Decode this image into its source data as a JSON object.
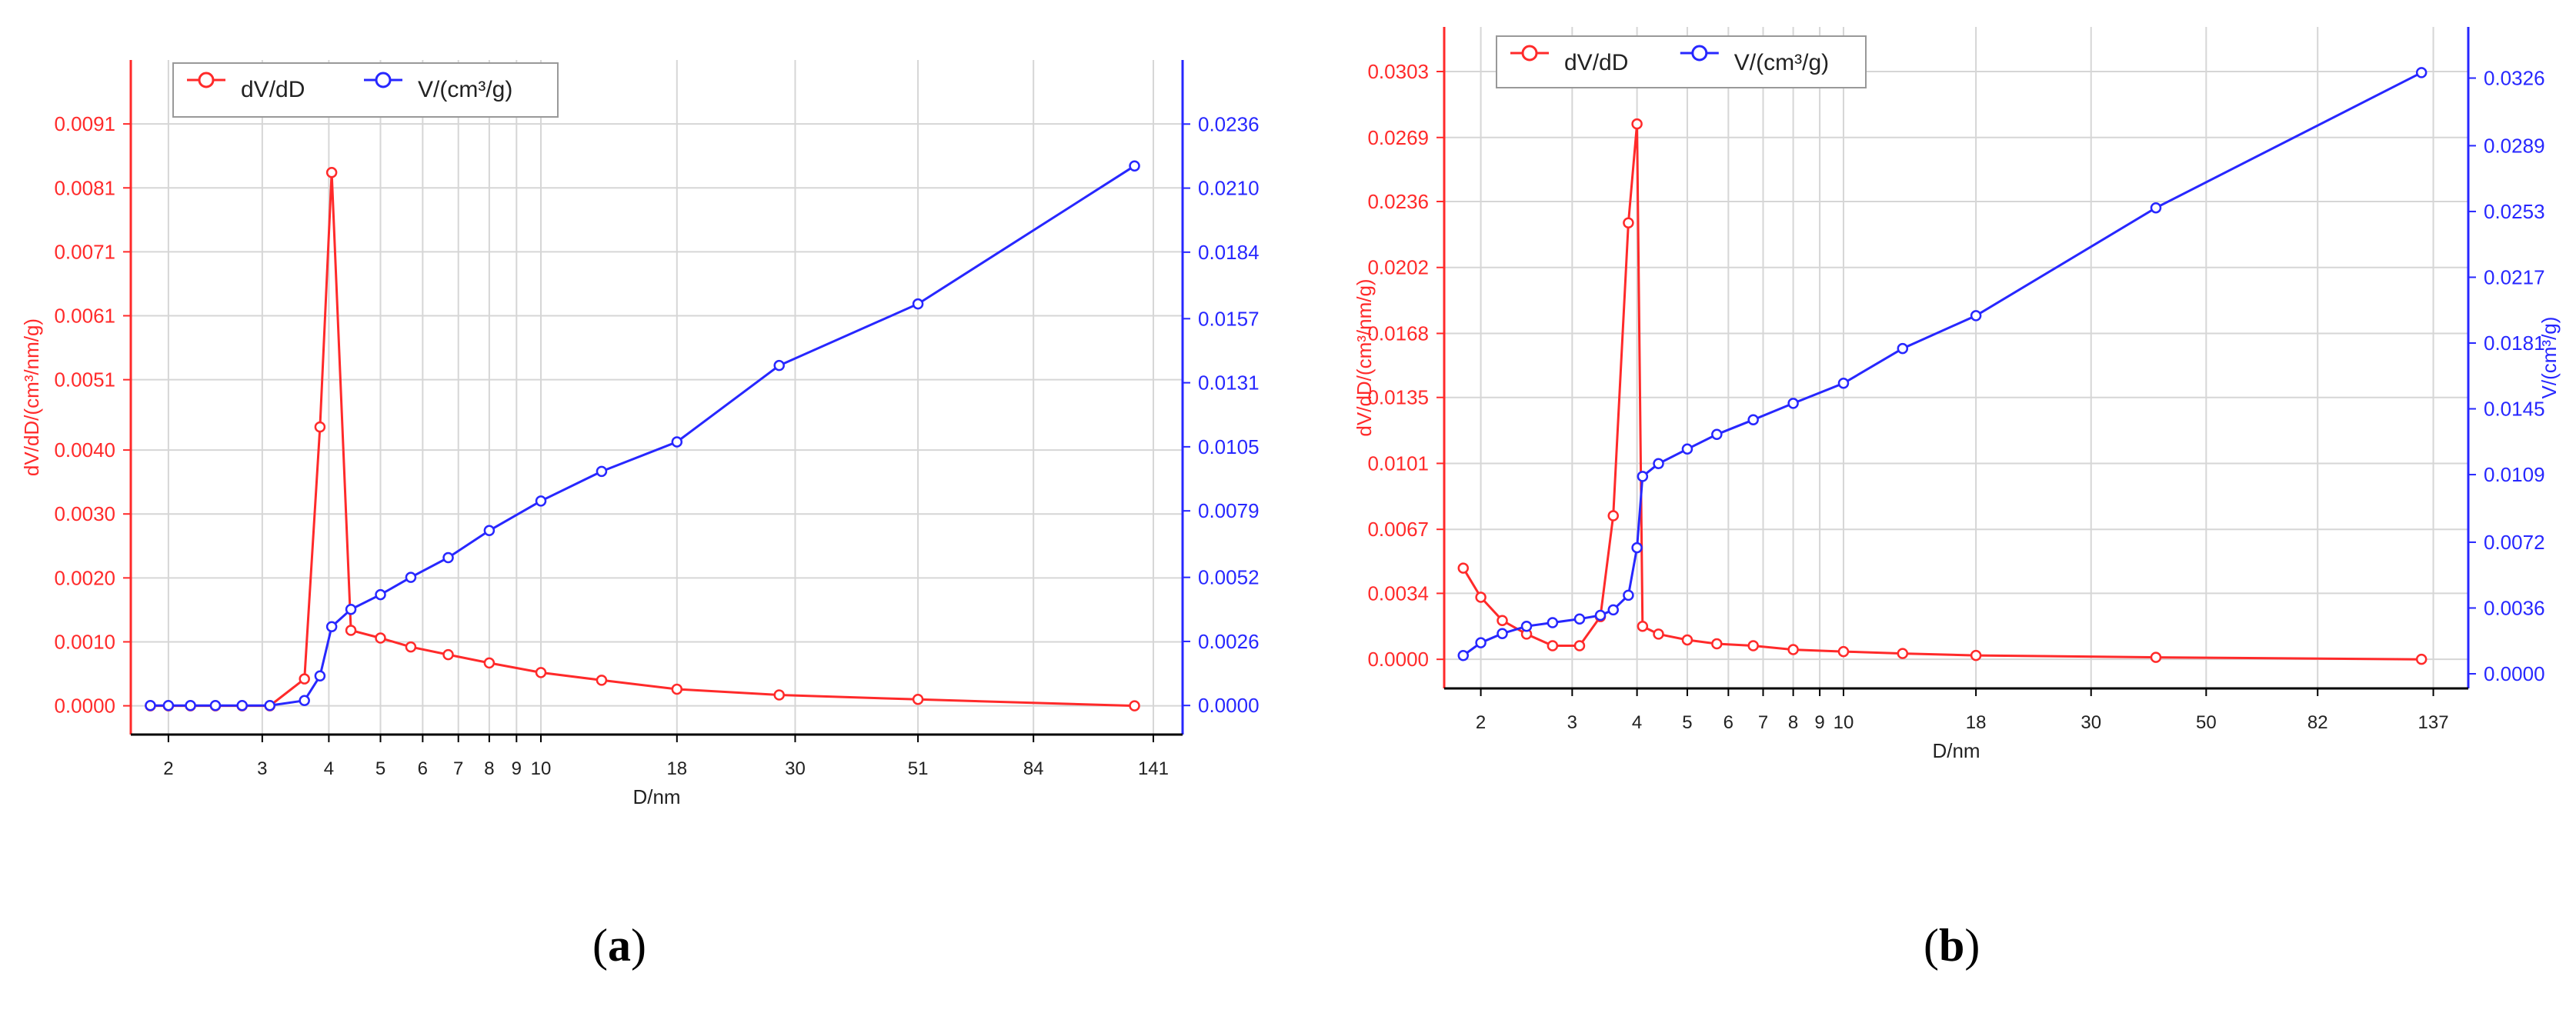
{
  "colors": {
    "dv": "#ff2a2a",
    "v": "#2727ff",
    "grid": "#d6d6d6",
    "axis": "#000000"
  },
  "panels": [
    {
      "label": "a"
    },
    {
      "label": "b"
    }
  ],
  "chart_data": [
    {
      "type": "line",
      "panel": "a",
      "xlabel": "D/nm",
      "x_scale": "log",
      "xlim": [
        1.7,
        160
      ],
      "x_ticks": [
        2,
        3,
        4,
        5,
        6,
        7,
        8,
        9,
        10,
        18,
        30,
        51,
        84,
        141
      ],
      "y_left_label": "dV/dD/(cm³/nm/g)",
      "y_left_ticks": [
        "0.0000",
        "0.0010",
        "0.0020",
        "0.0030",
        "0.0040",
        "0.0051",
        "0.0061",
        "0.0071",
        "0.0081",
        "0.0091"
      ],
      "y_left_lim": [
        -0.00045,
        0.0101
      ],
      "y_right_label": "",
      "y_right_ticks": [
        "0.0000",
        "0.0026",
        "0.0052",
        "0.0079",
        "0.0105",
        "0.0131",
        "0.0157",
        "0.0184",
        "0.0210",
        "0.0236"
      ],
      "y_right_lim": [
        -0.00118,
        0.0262
      ],
      "legend": {
        "position": "top-left",
        "entries": [
          "dV/dD",
          "V/(cm³/g)"
        ]
      },
      "grid": true,
      "series": [
        {
          "name": "dV/dD",
          "axis": "left",
          "x": [
            1.85,
            2.0,
            2.2,
            2.45,
            2.75,
            3.1,
            3.6,
            3.85,
            4.05,
            4.4,
            5.0,
            5.7,
            6.7,
            8.0,
            10.0,
            13.0,
            18.0,
            28.0,
            51.0,
            130.0
          ],
          "y": [
            0.0,
            0.0,
            0.0,
            0.0,
            0.0,
            0.0,
            0.00042,
            0.00436,
            0.00834,
            0.00118,
            0.00106,
            0.00092,
            0.0008,
            0.00067,
            0.00052,
            0.0004,
            0.00026,
            0.00017,
            0.0001,
            0.0
          ]
        },
        {
          "name": "V/(cm³/g)",
          "axis": "right",
          "x": [
            1.85,
            2.0,
            2.2,
            2.45,
            2.75,
            3.1,
            3.6,
            3.85,
            4.05,
            4.4,
            5.0,
            5.7,
            6.7,
            8.0,
            10.0,
            13.0,
            18.0,
            28.0,
            51.0,
            130.0
          ],
          "y": [
            0.0,
            0.0,
            0.0,
            0.0,
            0.0,
            0.0,
            0.0002,
            0.0012,
            0.0032,
            0.0039,
            0.0045,
            0.0052,
            0.006,
            0.0071,
            0.0083,
            0.0095,
            0.0107,
            0.0138,
            0.0163,
            0.0219
          ]
        }
      ]
    },
    {
      "type": "line",
      "panel": "b",
      "xlabel": "D/nm",
      "x_scale": "log",
      "xlim": [
        1.7,
        160
      ],
      "x_ticks": [
        2,
        3,
        4,
        5,
        6,
        7,
        8,
        9,
        10,
        18,
        30,
        50,
        82,
        137
      ],
      "y_left_label": "dV/dD/(cm³/nm/g)",
      "y_left_ticks": [
        "0.0000",
        "0.0034",
        "0.0067",
        "0.0101",
        "0.0135",
        "0.0168",
        "0.0202",
        "0.0236",
        "0.0269",
        "0.0303"
      ],
      "y_left_lim": [
        -0.0015,
        0.0326
      ],
      "y_right_label": "V/(cm³/g)",
      "y_right_ticks": [
        "0.0000",
        "0.0036",
        "0.0072",
        "0.0109",
        "0.0145",
        "0.0181",
        "0.0217",
        "0.0253",
        "0.0289",
        "0.0326"
      ],
      "y_right_lim": [
        -0.0008,
        0.0354
      ],
      "legend": {
        "position": "top-left",
        "entries": [
          "dV/dD",
          "V/(cm³/g)"
        ]
      },
      "grid": true,
      "series": [
        {
          "name": "dV/dD",
          "axis": "left",
          "x": [
            1.85,
            2.0,
            2.2,
            2.45,
            2.75,
            3.1,
            3.4,
            3.6,
            3.85,
            4.0,
            4.1,
            4.4,
            5.0,
            5.7,
            6.7,
            8.0,
            10.0,
            13.0,
            18.0,
            40.0,
            130.0
          ],
          "y": [
            0.0047,
            0.0032,
            0.002,
            0.0013,
            0.0007,
            0.0007,
            0.0022,
            0.0074,
            0.0225,
            0.0276,
            0.0017,
            0.0013,
            0.001,
            0.0008,
            0.0007,
            0.0005,
            0.0004,
            0.0003,
            0.0002,
            0.0001,
            0.0
          ]
        },
        {
          "name": "V/(cm³/g)",
          "axis": "right",
          "x": [
            1.85,
            2.0,
            2.2,
            2.45,
            2.75,
            3.1,
            3.4,
            3.6,
            3.85,
            4.0,
            4.1,
            4.4,
            5.0,
            5.7,
            6.7,
            8.0,
            10.0,
            13.0,
            18.0,
            40.0,
            130.0
          ],
          "y": [
            0.001,
            0.0017,
            0.0022,
            0.0026,
            0.0028,
            0.003,
            0.0032,
            0.0035,
            0.0043,
            0.0069,
            0.0108,
            0.0115,
            0.0123,
            0.0131,
            0.0139,
            0.0148,
            0.0159,
            0.0178,
            0.0196,
            0.0255,
            0.0329
          ]
        }
      ]
    }
  ]
}
